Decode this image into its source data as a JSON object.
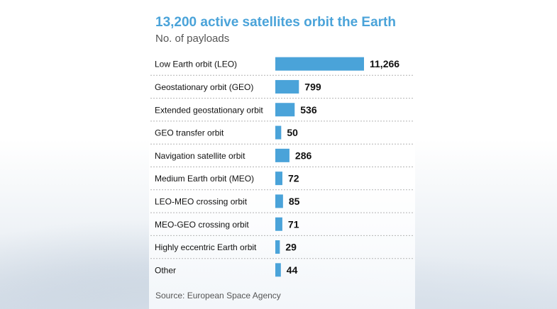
{
  "header": {
    "title": "13,200 active satellites orbit the Earth",
    "subtitle": "No. of payloads"
  },
  "footer": {
    "source": "Source: European Space Agency"
  },
  "colors": {
    "bar": "#4aa3d9",
    "title": "#4aa3d9",
    "label": "#111111",
    "divider": "#b4b4b4"
  },
  "chart_data": {
    "type": "bar",
    "orientation": "horizontal",
    "categories": [
      "Low Earth orbit (LEO)",
      "Geostationary orbit (GEO)",
      "Extended geostationary orbit",
      "GEO transfer orbit",
      "Navigation satellite orbit",
      "Medium Earth orbit (MEO)",
      "LEO-MEO crossing orbit",
      "MEO-GEO crossing orbit",
      "Highly eccentric Earth orbit",
      "Other"
    ],
    "values": [
      11266,
      799,
      536,
      50,
      286,
      72,
      85,
      71,
      29,
      44
    ],
    "value_labels": [
      "11,266",
      "799",
      "536",
      "50",
      "286",
      "72",
      "85",
      "71",
      "29",
      "44"
    ],
    "title": "13,200 active satellites orbit the Earth",
    "subtitle": "No. of payloads",
    "xlabel": "",
    "ylabel": "",
    "xlim": [
      0,
      11266
    ],
    "grid": false,
    "legend": "none",
    "value_scale": "root"
  }
}
